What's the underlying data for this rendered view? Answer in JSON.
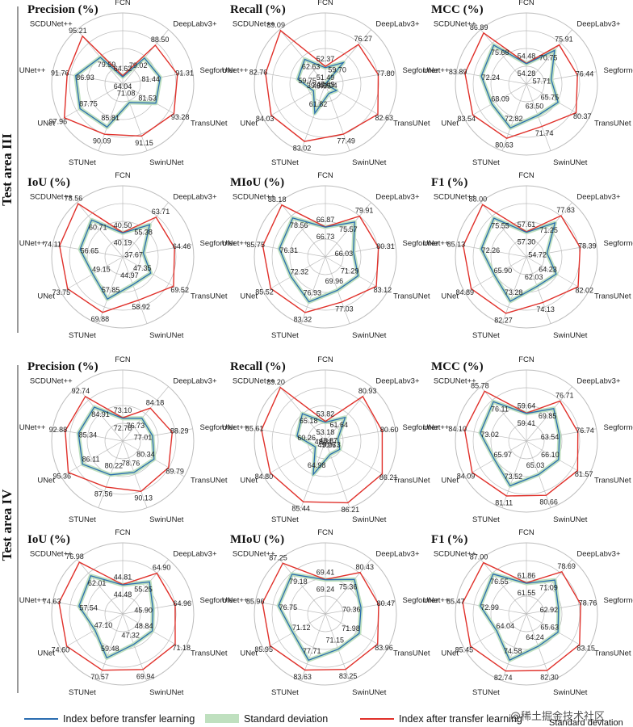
{
  "axes": [
    "FCN",
    "DeepLabv3+",
    "Segformer",
    "TransUNet",
    "SwinUNet",
    "STUNet",
    "UNet",
    "UNet++",
    "SCDUNet++"
  ],
  "legend": {
    "before": "Index before transfer learning",
    "std": "Standard deviation",
    "after": "Index after transfer learning"
  },
  "colors": {
    "before": "#2a6db0",
    "after": "#e0302a",
    "std": "#bfe0bf",
    "grid": "#bdbdbd"
  },
  "watermark": "@稀土掘金技术社区",
  "footer_label": "Standard deviation",
  "chart_data": [
    {
      "type": "radar",
      "group": "Test area III",
      "title": "Precision (%)",
      "rmin": 60,
      "rmax": 100,
      "series": [
        {
          "name": "Index before transfer learning",
          "values": [
            64.04,
            79.02,
            81.44,
            81.53,
            71.08,
            85.81,
            87.75,
            86.93,
            79.59
          ]
        },
        {
          "name": "Index after transfer learning",
          "values": [
            64.62,
            88.5,
            91.31,
            93.28,
            91.15,
            90.09,
            97.96,
            91.76,
            95.21
          ]
        }
      ]
    },
    {
      "type": "radar",
      "group": "Test area III",
      "title": "Recall (%)",
      "rmin": 40,
      "rmax": 90,
      "series": [
        {
          "name": "Index before transfer learning",
          "values": [
            51.49,
            59.7,
            39.07,
            49.04,
            47.09,
            61.82,
            49.65,
            59.75,
            62.63
          ]
        },
        {
          "name": "Index after transfer learning",
          "values": [
            52.37,
            76.27,
            77.8,
            82.63,
            77.49,
            83.02,
            84.03,
            82.76,
            89.09
          ]
        }
      ]
    },
    {
      "type": "radar",
      "group": "Test area III",
      "title": "MCC (%)",
      "rmin": 40,
      "rmax": 90,
      "series": [
        {
          "name": "Index before transfer learning",
          "values": [
            54.28,
            70.75,
            57.71,
            65.75,
            63.5,
            72.82,
            68.09,
            72.24,
            75.68
          ]
        },
        {
          "name": "Index after transfer learning",
          "values": [
            54.48,
            75.91,
            76.44,
            80.37,
            71.74,
            80.63,
            83.54,
            83.89,
            86.89
          ]
        }
      ]
    },
    {
      "type": "radar",
      "group": "Test area III",
      "title": "IoU (%)",
      "rmin": 20,
      "rmax": 80,
      "series": [
        {
          "name": "Index before transfer learning",
          "values": [
            40.19,
            55.38,
            37.67,
            47.35,
            44.97,
            57.85,
            49.15,
            56.65,
            60.71
          ]
        },
        {
          "name": "Index after transfer learning",
          "values": [
            40.5,
            63.71,
            64.46,
            69.52,
            58.92,
            69.88,
            73.75,
            74.11,
            78.56
          ]
        }
      ]
    },
    {
      "type": "radar",
      "group": "Test area III",
      "title": "MIoU (%)",
      "rmin": 50,
      "rmax": 90,
      "series": [
        {
          "name": "Index before transfer learning",
          "values": [
            66.73,
            75.57,
            66.03,
            71.29,
            69.96,
            76.93,
            72.32,
            76.31,
            78.56
          ]
        },
        {
          "name": "Index after transfer learning",
          "values": [
            66.87,
            79.91,
            80.31,
            83.12,
            77.03,
            83.32,
            85.52,
            85.75,
            88.18
          ]
        }
      ]
    },
    {
      "type": "radar",
      "group": "Test area III",
      "title": "F1 (%)",
      "rmin": 40,
      "rmax": 90,
      "series": [
        {
          "name": "Index before transfer learning",
          "values": [
            57.3,
            71.25,
            54.72,
            64.23,
            62.03,
            73.28,
            65.9,
            72.26,
            75.55
          ]
        },
        {
          "name": "Index after transfer learning",
          "values": [
            57.61,
            77.83,
            78.39,
            82.02,
            74.13,
            82.27,
            84.89,
            85.13,
            88.0
          ]
        }
      ]
    },
    {
      "type": "radar",
      "group": "Test area IV",
      "title": "Precision (%)",
      "rmin": 60,
      "rmax": 100,
      "series": [
        {
          "name": "Index before transfer learning",
          "values": [
            72.78,
            76.73,
            77.01,
            80.34,
            78.76,
            80.22,
            86.11,
            85.34,
            84.91
          ]
        },
        {
          "name": "Index after transfer learning",
          "values": [
            73.1,
            84.18,
            88.29,
            89.79,
            90.13,
            87.56,
            95.36,
            92.88,
            92.74
          ]
        }
      ]
    },
    {
      "type": "radar",
      "group": "Test area IV",
      "title": "Recall (%)",
      "rmin": 40,
      "rmax": 90,
      "series": [
        {
          "name": "Index before transfer learning",
          "values": [
            53.18,
            61.64,
            48.87,
            51.73,
            49.96,
            64.98,
            48.21,
            60.26,
            65.18
          ]
        },
        {
          "name": "Index after transfer learning",
          "values": [
            53.82,
            80.93,
            80.6,
            86.21,
            86.21,
            85.44,
            84.8,
            85.61,
            89.2
          ]
        }
      ]
    },
    {
      "type": "radar",
      "group": "Test area IV",
      "title": "MCC (%)",
      "rmin": 40,
      "rmax": 90,
      "series": [
        {
          "name": "Index before transfer learning",
          "values": [
            59.41,
            69.85,
            63.54,
            66.1,
            65.03,
            73.52,
            65.97,
            73.02,
            76.11
          ]
        },
        {
          "name": "Index after transfer learning",
          "values": [
            59.64,
            76.71,
            76.74,
            81.57,
            80.66,
            81.11,
            84.09,
            84.1,
            85.78
          ]
        }
      ]
    },
    {
      "type": "radar",
      "group": "Test area IV",
      "title": "IoU (%)",
      "rmin": 20,
      "rmax": 80,
      "series": [
        {
          "name": "Index before transfer learning",
          "values": [
            44.48,
            55.25,
            45.9,
            48.84,
            47.32,
            59.48,
            47.1,
            57.54,
            62.01
          ]
        },
        {
          "name": "Index after transfer learning",
          "values": [
            44.81,
            64.9,
            64.96,
            71.18,
            69.94,
            70.57,
            74.6,
            74.63,
            76.98
          ]
        }
      ]
    },
    {
      "type": "radar",
      "group": "Test area IV",
      "title": "MIoU (%)",
      "rmin": 50,
      "rmax": 90,
      "series": [
        {
          "name": "Index before transfer learning",
          "values": [
            69.24,
            75.36,
            70.36,
            71.98,
            71.15,
            77.71,
            71.12,
            76.75,
            79.18
          ]
        },
        {
          "name": "Index after transfer learning",
          "values": [
            69.41,
            80.43,
            80.47,
            83.96,
            83.25,
            83.63,
            85.95,
            85.96,
            87.25
          ]
        }
      ]
    },
    {
      "type": "radar",
      "group": "Test area IV",
      "title": "F1 (%)",
      "rmin": 40,
      "rmax": 90,
      "series": [
        {
          "name": "Index before transfer learning",
          "values": [
            61.55,
            71.09,
            62.92,
            65.63,
            64.24,
            74.58,
            64.04,
            72.99,
            76.55
          ]
        },
        {
          "name": "Index after transfer learning",
          "values": [
            61.86,
            78.69,
            78.76,
            83.15,
            82.3,
            82.74,
            85.45,
            85.47,
            87.0
          ]
        }
      ]
    }
  ]
}
